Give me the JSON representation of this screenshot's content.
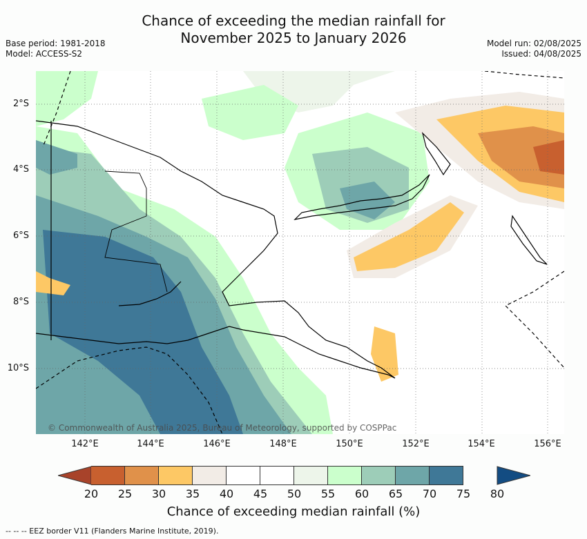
{
  "title_line1": "Chance of exceeding the median rainfall for",
  "title_line2": "November 2025 to January 2026",
  "base_period": "Base period: 1981-2018",
  "model": "Model: ACCESS-S2",
  "model_run": "Model run: 02/08/2025",
  "issued": "Issued: 04/08/2025",
  "lat_labels": [
    "2°S",
    "4°S",
    "6°S",
    "8°S",
    "10°S"
  ],
  "lon_labels": [
    "142°E",
    "144°E",
    "146°E",
    "148°E",
    "150°E",
    "152°E",
    "154°E",
    "156°E"
  ],
  "copyright": "© Commonwealth of Australia 2025, Bureau of Meteorology, supported by COSPPac",
  "colorbar": {
    "ticks": [
      "20",
      "25",
      "30",
      "35",
      "40",
      "45",
      "50",
      "55",
      "60",
      "65",
      "70",
      "75",
      "80"
    ],
    "colors": [
      "#a8432a",
      "#c8602f",
      "#e0914a",
      "#fdc865",
      "#f2ece6",
      "#ffffff",
      "#ffffff",
      "#edf5ea",
      "#cbffcc",
      "#9dcdb8",
      "#6ea6a8",
      "#3f7897",
      "#134c82"
    ],
    "title": "Chance of exceeding median rainfall (%)"
  },
  "footnote": "-- -- -- EEZ border V11 (Flanders Marine Institute, 2019)."
}
